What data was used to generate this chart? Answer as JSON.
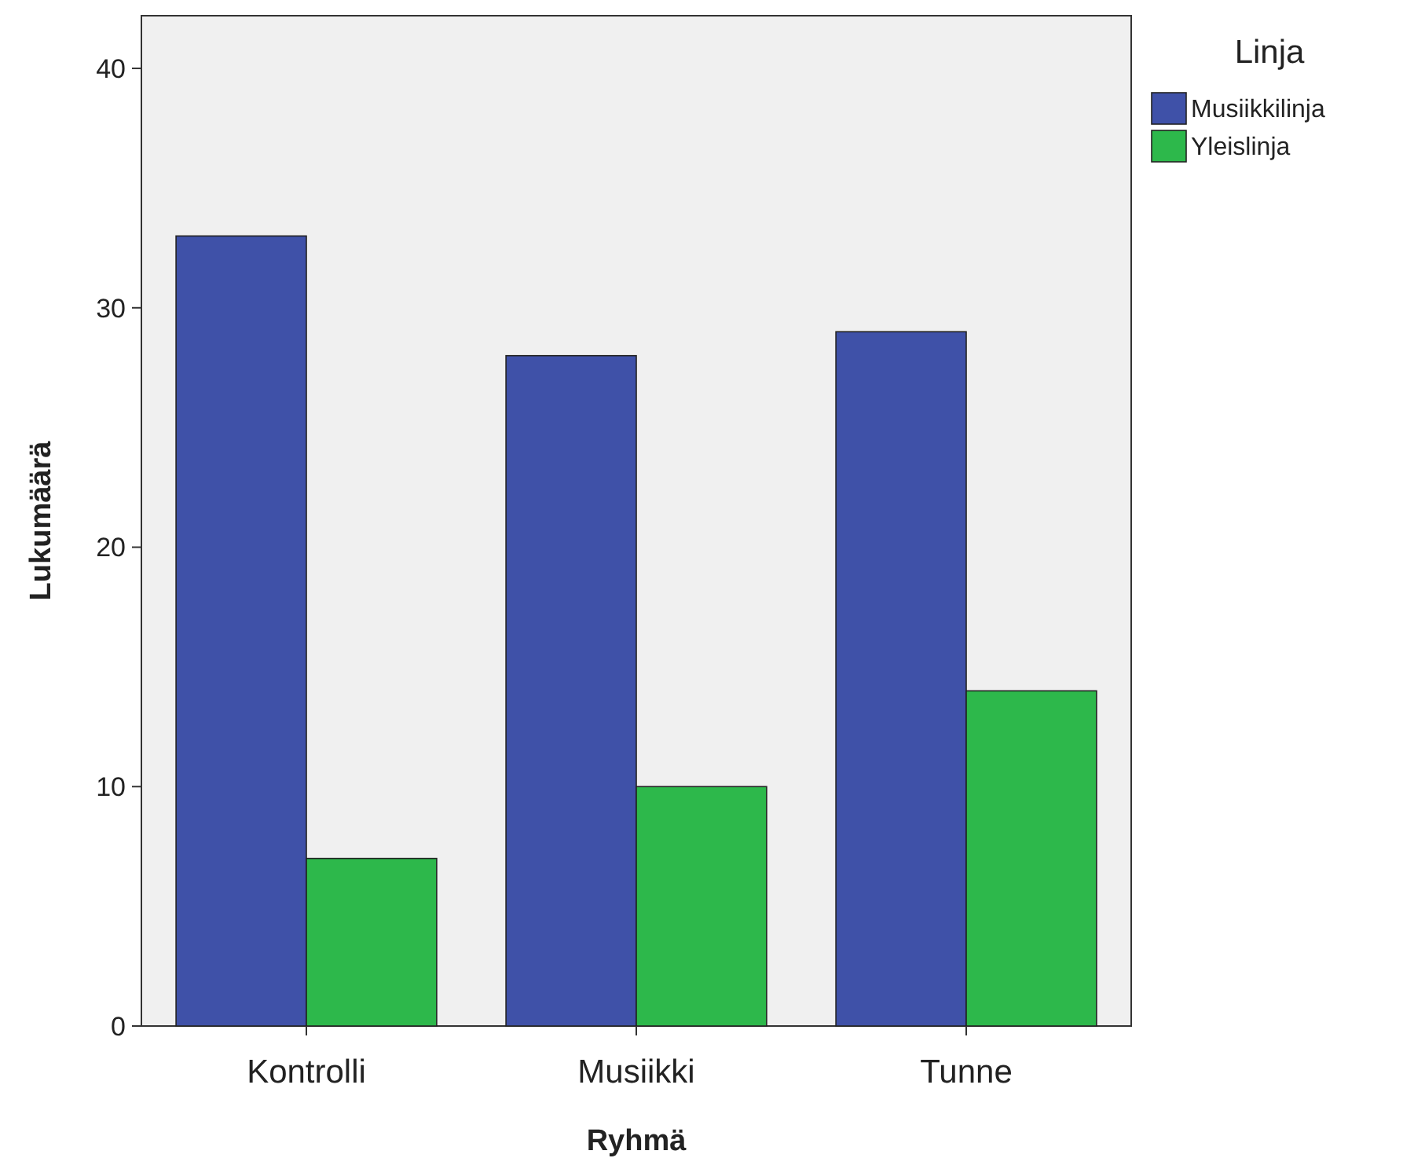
{
  "chart_data": {
    "type": "bar",
    "xlabel": "Ryhmä",
    "ylabel": "Lukumäärä",
    "legend_title": "Linja",
    "categories": [
      "Kontrolli",
      "Musiikki",
      "Tunne"
    ],
    "series": [
      {
        "name": "Musiikkilinja",
        "color": "#3f51a8",
        "values": [
          33,
          28,
          29
        ]
      },
      {
        "name": "Yleislinja",
        "color": "#2db84b",
        "values": [
          7,
          10,
          14
        ]
      }
    ],
    "ylim": [
      0,
      42.2
    ],
    "yticks": [
      0,
      10,
      20,
      30,
      40
    ],
    "grid": false,
    "legend": "top right"
  }
}
